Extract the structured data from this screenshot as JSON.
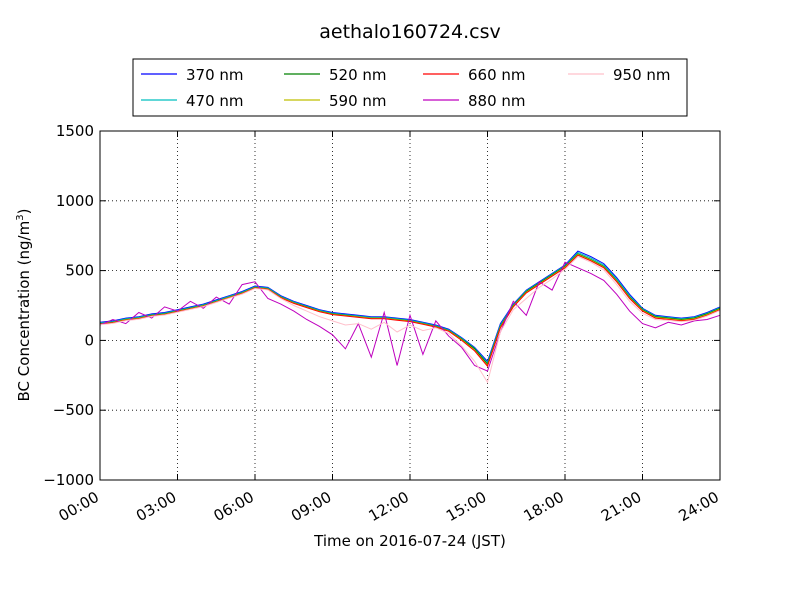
{
  "chart_data": {
    "type": "line",
    "title": "aethalo160724.csv",
    "xlabel": "Time on 2016-07-24 (JST)",
    "ylabel": "BC Concentration (ng/m³)",
    "ylabel_main": "BC Concentration (ng/m",
    "ylabel_sup": "3",
    "ylabel_close": ")",
    "x_unit": "hours",
    "xlim": [
      0,
      24
    ],
    "ylim": [
      -1000,
      1500
    ],
    "grid": true,
    "legend_position": "top",
    "x_ticks": [
      {
        "value": 0,
        "label": "00:00"
      },
      {
        "value": 3,
        "label": "03:00"
      },
      {
        "value": 6,
        "label": "06:00"
      },
      {
        "value": 9,
        "label": "09:00"
      },
      {
        "value": 12,
        "label": "12:00"
      },
      {
        "value": 15,
        "label": "15:00"
      },
      {
        "value": 18,
        "label": "18:00"
      },
      {
        "value": 21,
        "label": "21:00"
      },
      {
        "value": 24,
        "label": "24:00"
      }
    ],
    "y_ticks": [
      {
        "value": -1000,
        "label": "−1000"
      },
      {
        "value": -500,
        "label": "−500"
      },
      {
        "value": 0,
        "label": "0"
      },
      {
        "value": 500,
        "label": "500"
      },
      {
        "value": 1000,
        "label": "1000"
      },
      {
        "value": 1500,
        "label": "1500"
      }
    ],
    "x": [
      0,
      0.5,
      1,
      1.5,
      2,
      2.5,
      3,
      3.5,
      4,
      4.5,
      5,
      5.5,
      6,
      6.5,
      7,
      7.5,
      8,
      8.5,
      9,
      9.5,
      10,
      10.5,
      11,
      11.5,
      12,
      12.5,
      13,
      13.5,
      14,
      14.5,
      15,
      15.5,
      16,
      16.5,
      17,
      17.5,
      18,
      18.5,
      19,
      19.5,
      20,
      20.5,
      21,
      21.5,
      22,
      22.5,
      23,
      23.5,
      24
    ],
    "series": [
      {
        "name": "370 nm",
        "color": "#0000ff",
        "values": [
          130,
          140,
          160,
          170,
          190,
          200,
          220,
          240,
          260,
          290,
          320,
          350,
          390,
          380,
          320,
          280,
          250,
          220,
          200,
          190,
          180,
          170,
          170,
          160,
          150,
          130,
          110,
          80,
          20,
          -50,
          -150,
          120,
          260,
          360,
          420,
          480,
          540,
          640,
          600,
          550,
          450,
          330,
          230,
          180,
          170,
          160,
          170,
          200,
          240
        ]
      },
      {
        "name": "470 nm",
        "color": "#00bfbf",
        "values": [
          125,
          135,
          155,
          165,
          185,
          195,
          215,
          235,
          255,
          285,
          315,
          345,
          385,
          375,
          315,
          275,
          245,
          215,
          195,
          185,
          175,
          165,
          165,
          155,
          145,
          125,
          105,
          75,
          15,
          -55,
          -160,
          110,
          255,
          355,
          415,
          475,
          535,
          630,
          590,
          540,
          440,
          320,
          225,
          175,
          165,
          155,
          165,
          195,
          235
        ]
      },
      {
        "name": "520 nm",
        "color": "#008000",
        "values": [
          120,
          130,
          150,
          160,
          180,
          190,
          210,
          230,
          250,
          280,
          310,
          340,
          380,
          370,
          310,
          270,
          240,
          210,
          190,
          180,
          170,
          160,
          160,
          150,
          140,
          120,
          100,
          70,
          10,
          -60,
          -170,
          100,
          250,
          350,
          410,
          470,
          530,
          620,
          580,
          530,
          430,
          310,
          220,
          170,
          160,
          150,
          160,
          190,
          230
        ]
      },
      {
        "name": "590 nm",
        "color": "#bfbf00",
        "values": [
          118,
          128,
          148,
          158,
          178,
          188,
          208,
          228,
          248,
          278,
          308,
          338,
          378,
          368,
          308,
          268,
          238,
          208,
          188,
          178,
          168,
          158,
          158,
          148,
          138,
          118,
          98,
          68,
          5,
          -70,
          -180,
          95,
          245,
          345,
          405,
          465,
          525,
          615,
          575,
          525,
          425,
          305,
          215,
          165,
          155,
          145,
          155,
          185,
          225
        ]
      },
      {
        "name": "660 nm",
        "color": "#ff0000",
        "values": [
          115,
          125,
          145,
          155,
          175,
          185,
          205,
          225,
          245,
          275,
          305,
          335,
          375,
          365,
          305,
          265,
          235,
          205,
          185,
          175,
          165,
          155,
          155,
          145,
          135,
          115,
          95,
          65,
          0,
          -75,
          -185,
          90,
          240,
          340,
          400,
          460,
          520,
          610,
          570,
          520,
          420,
          300,
          210,
          160,
          150,
          140,
          150,
          180,
          220
        ]
      },
      {
        "name": "880 nm",
        "color": "#bf00bf",
        "values": [
          110,
          150,
          120,
          200,
          160,
          240,
          210,
          280,
          230,
          310,
          260,
          400,
          420,
          300,
          260,
          210,
          150,
          100,
          40,
          -60,
          120,
          -120,
          200,
          -180,
          180,
          -100,
          140,
          30,
          -50,
          -180,
          -220,
          60,
          280,
          180,
          420,
          360,
          560,
          520,
          480,
          430,
          330,
          210,
          120,
          90,
          130,
          110,
          140,
          150,
          180
        ]
      },
      {
        "name": "950 nm",
        "color": "#ffc0cb",
        "values": [
          112,
          122,
          142,
          152,
          172,
          182,
          202,
          222,
          242,
          272,
          302,
          332,
          372,
          362,
          300,
          250,
          210,
          170,
          140,
          110,
          120,
          80,
          130,
          60,
          110,
          70,
          90,
          50,
          -40,
          -150,
          -300,
          60,
          220,
          300,
          380,
          440,
          510,
          600,
          560,
          505,
          400,
          280,
          195,
          150,
          145,
          135,
          145,
          175,
          215
        ]
      }
    ]
  }
}
